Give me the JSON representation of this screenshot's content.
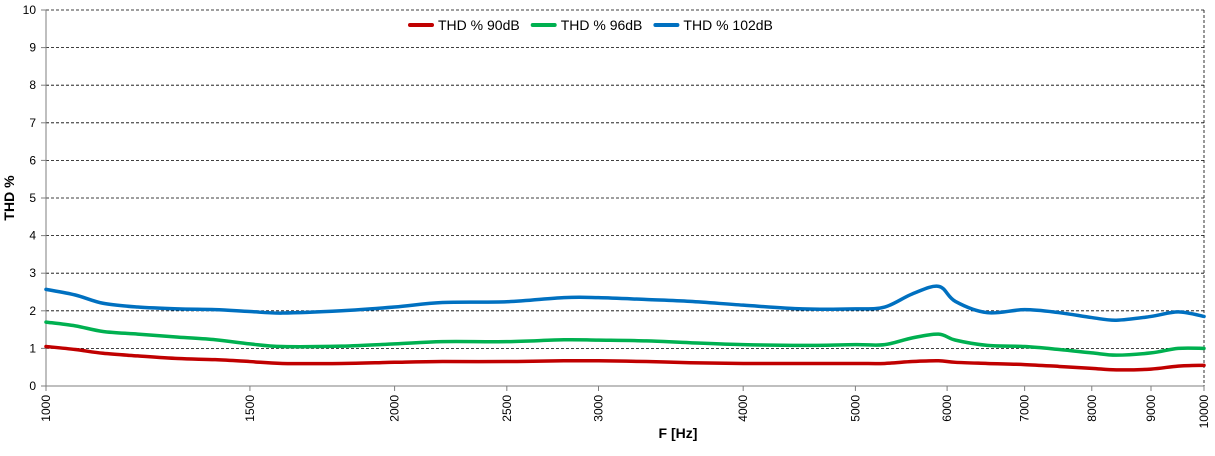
{
  "chart_data": {
    "type": "line",
    "xlabel": "F [Hz]",
    "ylabel": "THD %",
    "xscale": "log",
    "xlim": [
      1000,
      10000
    ],
    "ylim": [
      0,
      10
    ],
    "x_ticks": [
      1000,
      1500,
      2000,
      2500,
      3000,
      4000,
      5000,
      6000,
      7000,
      8000,
      9000,
      10000
    ],
    "x_tick_labels": [
      "1000",
      "1500",
      "2000",
      "2500",
      "3000",
      "4000",
      "5000",
      "6000",
      "7000",
      "8000",
      "9000",
      "10000"
    ],
    "y_ticks": [
      0,
      1,
      2,
      3,
      4,
      5,
      6,
      7,
      8,
      9,
      10
    ],
    "y_tick_labels": [
      "0",
      "1",
      "2",
      "3",
      "4",
      "5",
      "6",
      "7",
      "8",
      "9",
      "10"
    ],
    "grid": "horizontal-dashed",
    "legend_position": "top-center",
    "series": [
      {
        "name": "THD % 90dB",
        "color": "#c00000",
        "x": [
          1000,
          1060,
          1120,
          1200,
          1300,
          1400,
          1500,
          1600,
          1800,
          2000,
          2200,
          2500,
          2800,
          3000,
          3300,
          3600,
          4000,
          4500,
          5000,
          5300,
          5600,
          5900,
          6100,
          6500,
          7000,
          7500,
          8000,
          8400,
          9000,
          9500,
          10000
        ],
        "values": [
          1.05,
          0.97,
          0.87,
          0.8,
          0.73,
          0.7,
          0.65,
          0.6,
          0.6,
          0.63,
          0.65,
          0.65,
          0.67,
          0.67,
          0.65,
          0.62,
          0.6,
          0.6,
          0.6,
          0.6,
          0.65,
          0.67,
          0.63,
          0.6,
          0.57,
          0.52,
          0.47,
          0.43,
          0.45,
          0.53,
          0.55
        ]
      },
      {
        "name": "THD % 96dB",
        "color": "#00b050",
        "x": [
          1000,
          1060,
          1120,
          1200,
          1300,
          1400,
          1500,
          1600,
          1800,
          2000,
          2200,
          2500,
          2800,
          3000,
          3300,
          3600,
          4000,
          4500,
          5000,
          5300,
          5600,
          5900,
          6100,
          6500,
          7000,
          7500,
          8000,
          8400,
          9000,
          9500,
          10000
        ],
        "values": [
          1.7,
          1.6,
          1.45,
          1.38,
          1.3,
          1.23,
          1.12,
          1.05,
          1.06,
          1.12,
          1.18,
          1.18,
          1.23,
          1.22,
          1.2,
          1.15,
          1.1,
          1.08,
          1.1,
          1.1,
          1.28,
          1.38,
          1.22,
          1.08,
          1.05,
          0.97,
          0.88,
          0.82,
          0.88,
          1.0,
          1.0
        ]
      },
      {
        "name": "THD % 102dB",
        "color": "#0070c0",
        "x": [
          1000,
          1060,
          1120,
          1200,
          1300,
          1400,
          1500,
          1600,
          1800,
          2000,
          2200,
          2500,
          2800,
          3000,
          3300,
          3600,
          4000,
          4500,
          5000,
          5300,
          5600,
          5900,
          6100,
          6500,
          7000,
          7500,
          8000,
          8400,
          9000,
          9500,
          10000
        ],
        "values": [
          2.57,
          2.42,
          2.2,
          2.1,
          2.05,
          2.03,
          1.98,
          1.94,
          2.0,
          2.1,
          2.22,
          2.24,
          2.35,
          2.35,
          2.3,
          2.25,
          2.15,
          2.05,
          2.05,
          2.1,
          2.45,
          2.65,
          2.25,
          1.95,
          2.03,
          1.95,
          1.82,
          1.75,
          1.85,
          1.97,
          1.85
        ]
      }
    ]
  }
}
